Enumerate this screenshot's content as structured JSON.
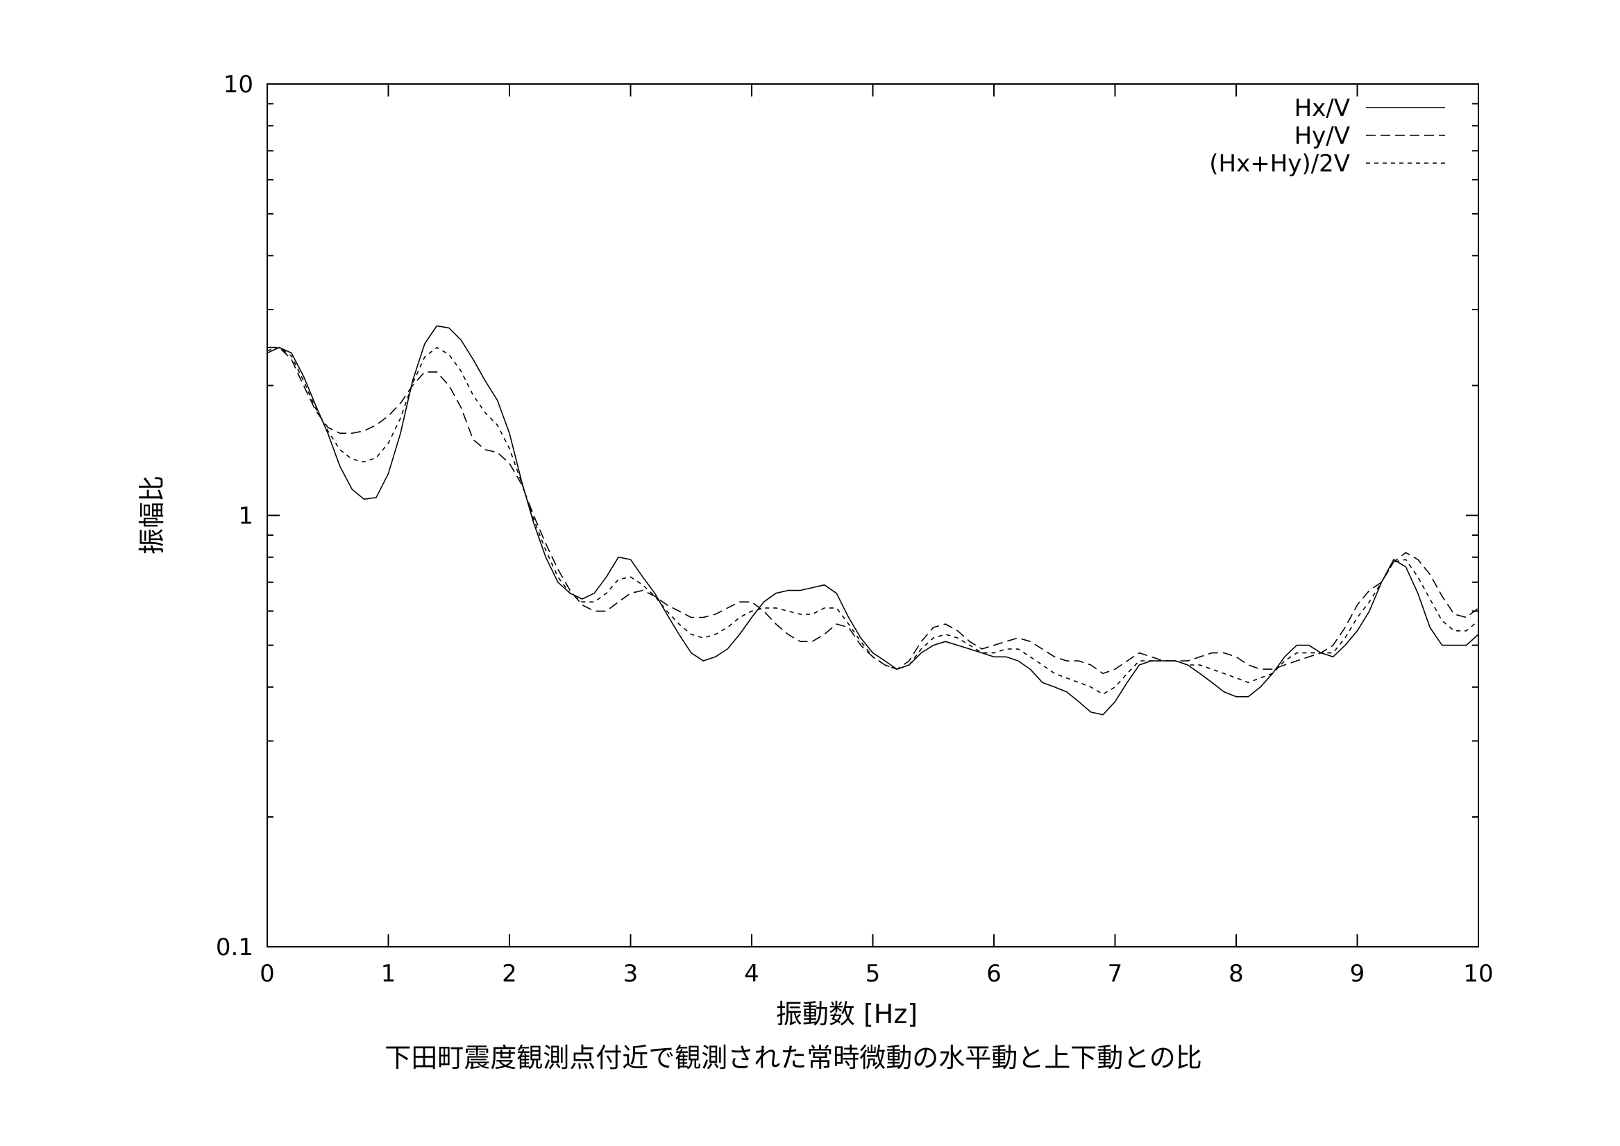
{
  "chart_data": {
    "type": "line",
    "title": "",
    "caption": "下田町震度観測点付近で観測された常時微動の水平動と上下動との比",
    "xlabel": "振動数 [Hz]",
    "ylabel": "振幅比",
    "xlim": [
      0,
      10
    ],
    "ylim": [
      0.1,
      10
    ],
    "yscale": "log",
    "grid": false,
    "legend_position": "top-right",
    "x_ticks": [
      "0",
      "1",
      "2",
      "3",
      "4",
      "5",
      "6",
      "7",
      "8",
      "9",
      "10"
    ],
    "y_ticks": [
      "0.1",
      "1",
      "10"
    ],
    "x": [
      0,
      0.1,
      0.2,
      0.3,
      0.4,
      0.5,
      0.6,
      0.7,
      0.8,
      0.9,
      1.0,
      1.1,
      1.2,
      1.3,
      1.4,
      1.5,
      1.6,
      1.7,
      1.8,
      1.9,
      2.0,
      2.1,
      2.2,
      2.3,
      2.4,
      2.5,
      2.6,
      2.7,
      2.8,
      2.9,
      3.0,
      3.1,
      3.2,
      3.3,
      3.4,
      3.5,
      3.6,
      3.7,
      3.8,
      3.9,
      4.0,
      4.1,
      4.2,
      4.3,
      4.4,
      4.5,
      4.6,
      4.7,
      4.8,
      4.9,
      5.0,
      5.1,
      5.2,
      5.3,
      5.4,
      5.5,
      5.6,
      5.7,
      5.8,
      5.9,
      6.0,
      6.1,
      6.2,
      6.3,
      6.4,
      6.5,
      6.6,
      6.7,
      6.8,
      6.9,
      7.0,
      7.1,
      7.2,
      7.3,
      7.4,
      7.5,
      7.6,
      7.7,
      7.8,
      7.9,
      8.0,
      8.1,
      8.2,
      8.3,
      8.4,
      8.5,
      8.6,
      8.7,
      8.8,
      8.9,
      9.0,
      9.1,
      9.2,
      9.3,
      9.4,
      9.5,
      9.6,
      9.7,
      9.8,
      9.9,
      10.0
    ],
    "series": [
      {
        "name": "Hx/V",
        "style": "solid",
        "values": [
          2.38,
          2.45,
          2.38,
          2.1,
          1.8,
          1.55,
          1.3,
          1.15,
          1.09,
          1.1,
          1.25,
          1.55,
          2.05,
          2.5,
          2.75,
          2.72,
          2.55,
          2.3,
          2.05,
          1.85,
          1.55,
          1.2,
          0.96,
          0.8,
          0.7,
          0.66,
          0.64,
          0.66,
          0.72,
          0.8,
          0.79,
          0.72,
          0.66,
          0.59,
          0.53,
          0.48,
          0.46,
          0.47,
          0.49,
          0.53,
          0.58,
          0.63,
          0.66,
          0.67,
          0.67,
          0.68,
          0.69,
          0.66,
          0.58,
          0.52,
          0.48,
          0.46,
          0.44,
          0.45,
          0.48,
          0.5,
          0.51,
          0.5,
          0.49,
          0.48,
          0.47,
          0.47,
          0.46,
          0.44,
          0.41,
          0.4,
          0.39,
          0.37,
          0.35,
          0.345,
          0.37,
          0.41,
          0.45,
          0.46,
          0.46,
          0.46,
          0.45,
          0.43,
          0.41,
          0.39,
          0.38,
          0.38,
          0.4,
          0.43,
          0.47,
          0.5,
          0.5,
          0.48,
          0.47,
          0.5,
          0.54,
          0.6,
          0.7,
          0.79,
          0.76,
          0.66,
          0.55,
          0.5,
          0.5,
          0.5,
          0.53
        ]
      },
      {
        "name": "Hy/V",
        "style": "dashed",
        "values": [
          2.45,
          2.45,
          2.3,
          2.0,
          1.75,
          1.6,
          1.55,
          1.55,
          1.57,
          1.62,
          1.7,
          1.82,
          2.0,
          2.15,
          2.15,
          2.0,
          1.78,
          1.5,
          1.42,
          1.4,
          1.32,
          1.18,
          1.0,
          0.86,
          0.75,
          0.67,
          0.62,
          0.6,
          0.6,
          0.63,
          0.66,
          0.67,
          0.65,
          0.62,
          0.6,
          0.58,
          0.58,
          0.59,
          0.61,
          0.63,
          0.63,
          0.6,
          0.56,
          0.53,
          0.51,
          0.51,
          0.53,
          0.56,
          0.55,
          0.5,
          0.47,
          0.45,
          0.44,
          0.46,
          0.51,
          0.55,
          0.56,
          0.54,
          0.51,
          0.49,
          0.5,
          0.51,
          0.52,
          0.51,
          0.49,
          0.47,
          0.46,
          0.46,
          0.45,
          0.43,
          0.44,
          0.46,
          0.48,
          0.47,
          0.46,
          0.46,
          0.46,
          0.47,
          0.48,
          0.48,
          0.47,
          0.45,
          0.44,
          0.44,
          0.45,
          0.46,
          0.47,
          0.48,
          0.5,
          0.55,
          0.62,
          0.67,
          0.7,
          0.78,
          0.82,
          0.79,
          0.73,
          0.65,
          0.59,
          0.58,
          0.61
        ]
      },
      {
        "name": "(Hx+Hy)/2V",
        "style": "dotted",
        "values": [
          2.41,
          2.45,
          2.34,
          2.05,
          1.77,
          1.57,
          1.42,
          1.35,
          1.33,
          1.36,
          1.47,
          1.68,
          2.02,
          2.33,
          2.45,
          2.36,
          2.16,
          1.9,
          1.73,
          1.62,
          1.43,
          1.19,
          0.98,
          0.83,
          0.72,
          0.66,
          0.63,
          0.63,
          0.66,
          0.71,
          0.72,
          0.69,
          0.65,
          0.6,
          0.56,
          0.53,
          0.52,
          0.53,
          0.55,
          0.58,
          0.6,
          0.61,
          0.61,
          0.6,
          0.59,
          0.59,
          0.61,
          0.61,
          0.56,
          0.51,
          0.47,
          0.45,
          0.44,
          0.45,
          0.49,
          0.52,
          0.53,
          0.52,
          0.5,
          0.48,
          0.48,
          0.49,
          0.49,
          0.47,
          0.45,
          0.43,
          0.42,
          0.41,
          0.4,
          0.385,
          0.4,
          0.43,
          0.46,
          0.46,
          0.46,
          0.46,
          0.45,
          0.45,
          0.44,
          0.43,
          0.42,
          0.41,
          0.42,
          0.43,
          0.46,
          0.48,
          0.48,
          0.48,
          0.48,
          0.52,
          0.58,
          0.63,
          0.7,
          0.78,
          0.79,
          0.72,
          0.64,
          0.57,
          0.54,
          0.54,
          0.57
        ]
      }
    ]
  }
}
